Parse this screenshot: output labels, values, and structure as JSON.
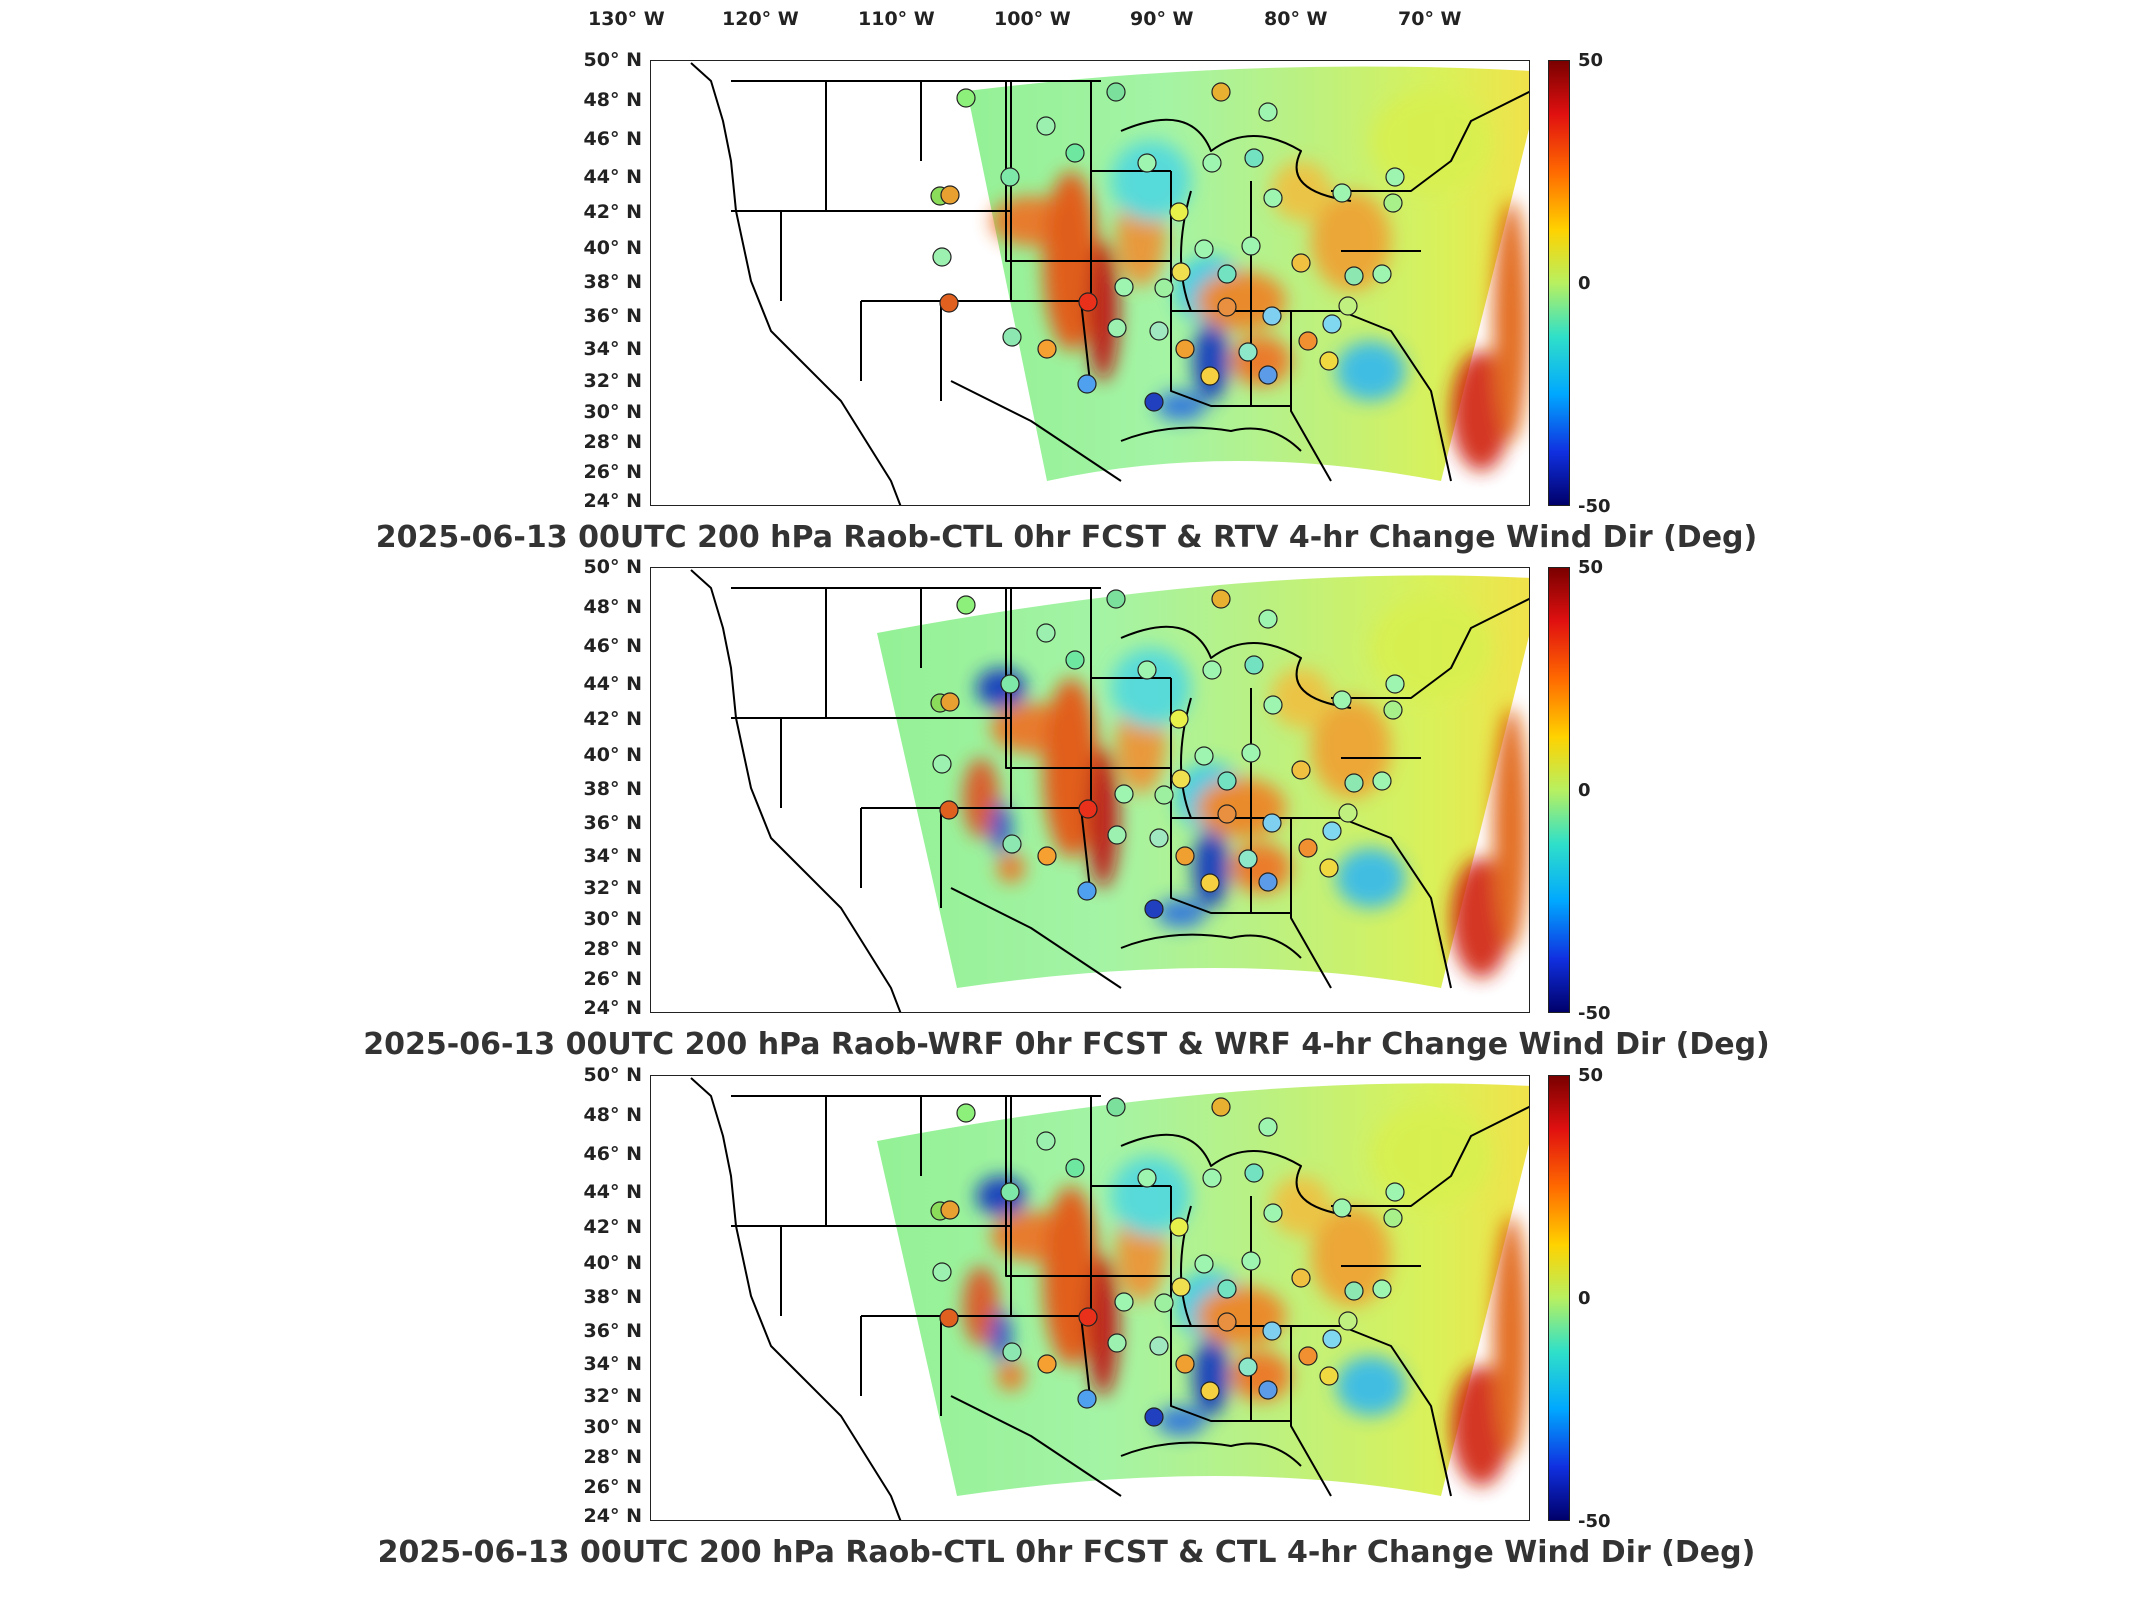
{
  "lon_labels": [
    "130° W",
    "120° W",
    "110° W",
    "100° W",
    "90° W",
    "80° W",
    "70° W"
  ],
  "lat_labels": [
    "50° N",
    "48° N",
    "46° N",
    "44° N",
    "42° N",
    "40° N",
    "38° N",
    "36° N",
    "34° N",
    "32° N",
    "30° N",
    "28° N",
    "26° N",
    "24° N"
  ],
  "colorbar": {
    "max": "50",
    "mid": "0",
    "min": "-50",
    "colors": [
      "#7a0000",
      "#e01010",
      "#ff6a00",
      "#ffd200",
      "#b8f060",
      "#30e0c8",
      "#00a8ff",
      "#1030e0",
      "#00006a"
    ]
  },
  "panels": [
    {
      "title": "2025-06-13 00UTC 200 hPa Raob-CTL 0hr FCST & RTV 4-hr Change Wind Dir (Deg)"
    },
    {
      "title": "2025-06-13 00UTC 200 hPa Raob-WRF 0hr FCST & WRF 4-hr Change Wind Dir (Deg)"
    },
    {
      "title": "2025-06-13 00UTC 200 hPa Raob-CTL 0hr FCST & CTL 4-hr Change Wind Dir (Deg)"
    }
  ]
}
